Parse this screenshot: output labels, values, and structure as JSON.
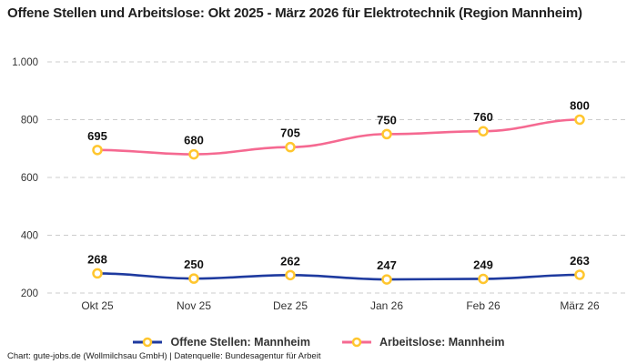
{
  "header": {
    "title": "Offene Stellen und Arbeitslose: Okt 2025 - März 2026 für Elektrotechnik (Region Mannheim)"
  },
  "chart_data": {
    "type": "line",
    "title": "Offene Stellen und Arbeitslose: Okt 2025 - März 2026 für Elektrotechnik (Region Mannheim)",
    "categories": [
      "Okt 25",
      "Nov 25",
      "Dez 25",
      "Jan 26",
      "Feb 26",
      "März 26"
    ],
    "series": [
      {
        "name": "Offene Stellen: Mannheim",
        "color": "#1E3A9F",
        "values": [
          268,
          250,
          262,
          247,
          249,
          263
        ]
      },
      {
        "name": "Arbeitslose: Mannheim",
        "color": "#F56991",
        "values": [
          695,
          680,
          705,
          750,
          760,
          800
        ]
      }
    ],
    "marker_color": "#FFC62E",
    "marker_fill": "#ffffff",
    "y_ticks": [
      200,
      400,
      600,
      800,
      1000
    ],
    "y_tick_labels": [
      "200",
      "400",
      "600",
      "800",
      "1.000"
    ],
    "ylim": [
      200,
      1000
    ],
    "grid": "horizontal-dashed",
    "grid_color": "#cccccc",
    "label_color": "#333333",
    "value_label_color": "#111111",
    "legend_position": "bottom",
    "show_point_labels": true
  },
  "footer": {
    "credit": "Chart: gute-jobs.de (Wollmilchsau GmbH) | Datenquelle: Bundesagentur für Arbeit"
  }
}
